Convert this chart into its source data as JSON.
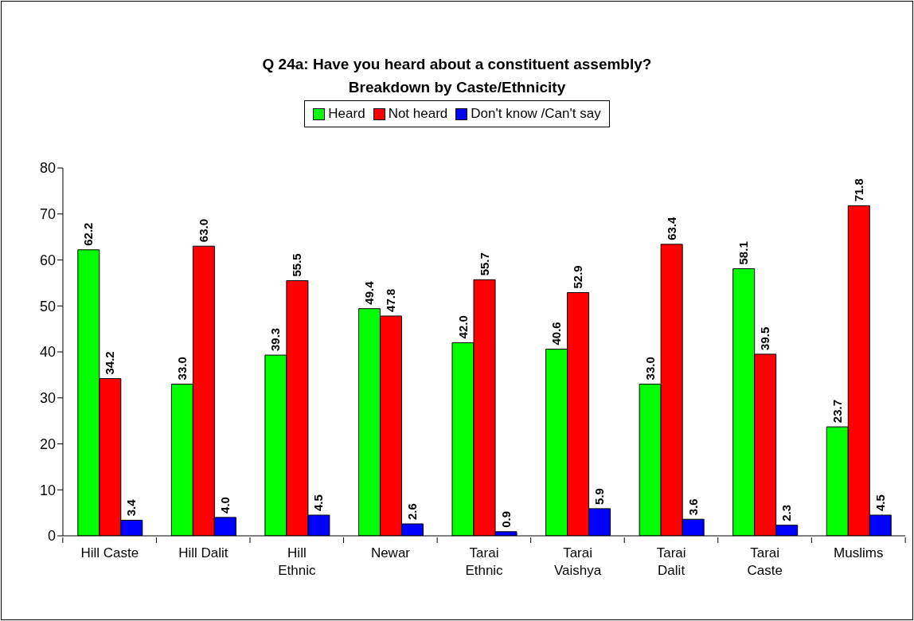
{
  "chart_data": {
    "type": "bar",
    "title": "Q 24a: Have you heard about a constituent assembly?\nBreakdown by Caste/Ethnicity",
    "categories": [
      "Hill Caste",
      "Hill Dalit",
      "Hill\nEthnic",
      "Newar",
      "Tarai\nEthnic",
      "Tarai\nVaishya",
      "Tarai\nDalit",
      "Tarai\nCaste",
      "Muslims"
    ],
    "series": [
      {
        "name": "Heard",
        "color": "#00ff00",
        "values": [
          62.2,
          33.0,
          39.3,
          49.4,
          42.0,
          40.6,
          33.0,
          58.1,
          23.7
        ],
        "value_labels": [
          "62.2",
          "33.0",
          "39.3",
          "49.4",
          "42.0",
          "40.6",
          "33.0",
          "58.1",
          "23.7"
        ]
      },
      {
        "name": "Not heard",
        "color": "#ff0000",
        "values": [
          34.2,
          63.0,
          55.5,
          47.8,
          55.7,
          52.9,
          63.4,
          39.5,
          71.8
        ],
        "value_labels": [
          "34.2",
          "63.0",
          "55.5",
          "47.8",
          "55.7",
          "52.9",
          "63.4",
          "39.5",
          "71.8"
        ]
      },
      {
        "name": "Don't know /Can't say",
        "color": "#0000ff",
        "values": [
          3.4,
          4.0,
          4.5,
          2.6,
          0.9,
          5.9,
          3.6,
          2.3,
          4.5
        ],
        "value_labels": [
          "3.4",
          "4.0",
          "4.5",
          "2.6",
          "0.9",
          "5.9",
          "3.6",
          "2.3",
          "4.5"
        ]
      }
    ],
    "ylim": [
      0,
      80
    ],
    "yticks": [
      0,
      10,
      20,
      30,
      40,
      50,
      60,
      70,
      80
    ],
    "legend": "top"
  }
}
